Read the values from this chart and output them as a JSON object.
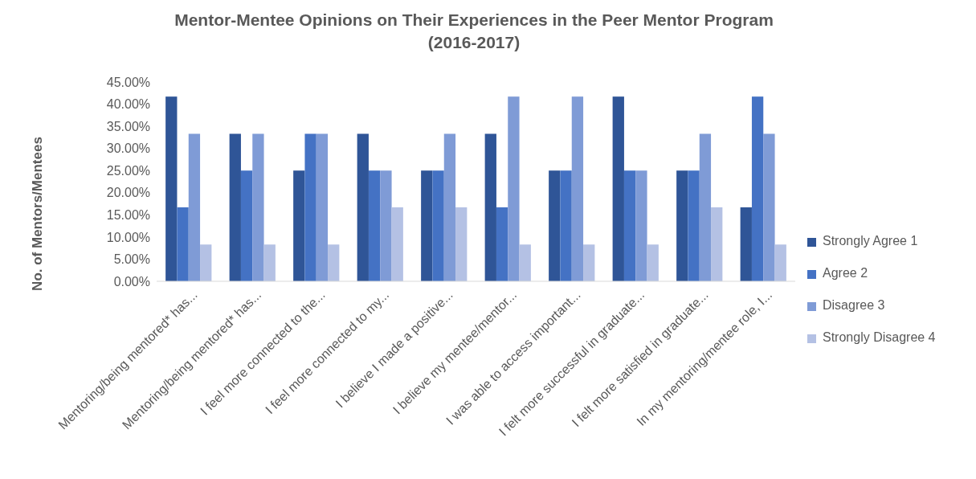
{
  "chart_data": {
    "type": "bar",
    "title": "Mentor-Mentee Opinions on Their Experiences in the Peer Mentor Program\n(2016-2017)",
    "ylabel": "No. of Mentors/Mentees",
    "categories": [
      "Mentoring/being mentored* has...",
      "Mentoring/being mentored* has...",
      "I feel more connected to the...",
      "I feel more connected to my...",
      "I believe I made a positive...",
      "I believe my mentee/mentor...",
      "I was able to access important...",
      "I felt more successful in graduate...",
      "I felt more satisfied in graduate...",
      "In my mentoring/mentee role, I..."
    ],
    "series": [
      {
        "name": "Strongly Agree 1",
        "color": "#2f5597",
        "values": [
          41.7,
          33.3,
          25,
          33.3,
          25,
          33.3,
          25,
          41.7,
          25,
          16.7
        ]
      },
      {
        "name": "Agree 2",
        "color": "#4472c4",
        "values": [
          16.7,
          25,
          33.3,
          25,
          25,
          16.7,
          25,
          25,
          25,
          41.7
        ]
      },
      {
        "name": "Disagree 3",
        "color": "#7f9bd6",
        "values": [
          33.3,
          33.3,
          33.3,
          25,
          33.3,
          41.7,
          41.7,
          25,
          33.3,
          33.3
        ]
      },
      {
        "name": "Strongly Disagree 4",
        "color": "#b4c1e4",
        "values": [
          8.3,
          8.3,
          8.3,
          16.7,
          16.7,
          8.3,
          8.3,
          8.3,
          16.7,
          8.3
        ]
      }
    ],
    "ylim": [
      0,
      45
    ],
    "yticks": [
      {
        "value": 0,
        "label": "0.00%"
      },
      {
        "value": 5,
        "label": "5.00%"
      },
      {
        "value": 10,
        "label": "10.00%"
      },
      {
        "value": 15,
        "label": "15.00%"
      },
      {
        "value": 20,
        "label": "20.00%"
      },
      {
        "value": 25,
        "label": "25.00%"
      },
      {
        "value": 30,
        "label": "30.00%"
      },
      {
        "value": 35,
        "label": "35.00%"
      },
      {
        "value": 40,
        "label": "40.00%"
      },
      {
        "value": 45,
        "label": "45.00%"
      }
    ],
    "legend": "right"
  }
}
